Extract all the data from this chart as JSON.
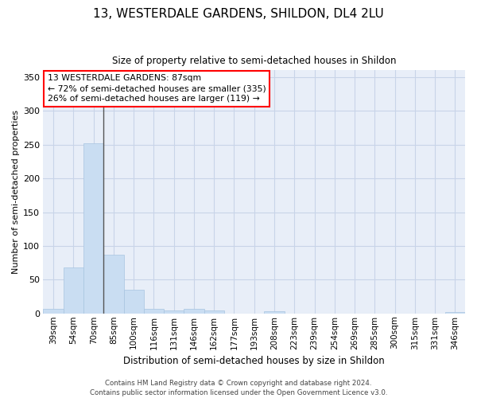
{
  "title1": "13, WESTERDALE GARDENS, SHILDON, DL4 2LU",
  "title2": "Size of property relative to semi-detached houses in Shildon",
  "xlabel": "Distribution of semi-detached houses by size in Shildon",
  "ylabel": "Number of semi-detached properties",
  "categories": [
    "39sqm",
    "54sqm",
    "70sqm",
    "85sqm",
    "100sqm",
    "116sqm",
    "131sqm",
    "146sqm",
    "162sqm",
    "177sqm",
    "193sqm",
    "208sqm",
    "223sqm",
    "239sqm",
    "254sqm",
    "269sqm",
    "285sqm",
    "300sqm",
    "315sqm",
    "331sqm",
    "346sqm"
  ],
  "values": [
    7,
    68,
    252,
    87,
    35,
    7,
    5,
    7,
    4,
    0,
    0,
    3,
    0,
    0,
    0,
    0,
    0,
    0,
    0,
    0,
    2
  ],
  "bar_color": "#c9ddf2",
  "bar_edge_color": "#a8c4e0",
  "grid_color": "#c8d4e8",
  "background_color": "#e8eef8",
  "annotation_box_text": "13 WESTERDALE GARDENS: 87sqm\n← 72% of semi-detached houses are smaller (335)\n26% of semi-detached houses are larger (119) →",
  "vline_color": "#555555",
  "footnote": "Contains HM Land Registry data © Crown copyright and database right 2024.\nContains public sector information licensed under the Open Government Licence v3.0.",
  "ylim": [
    0,
    360
  ],
  "yticks": [
    0,
    50,
    100,
    150,
    200,
    250,
    300,
    350
  ],
  "fig_width": 6.0,
  "fig_height": 5.0,
  "dpi": 100
}
